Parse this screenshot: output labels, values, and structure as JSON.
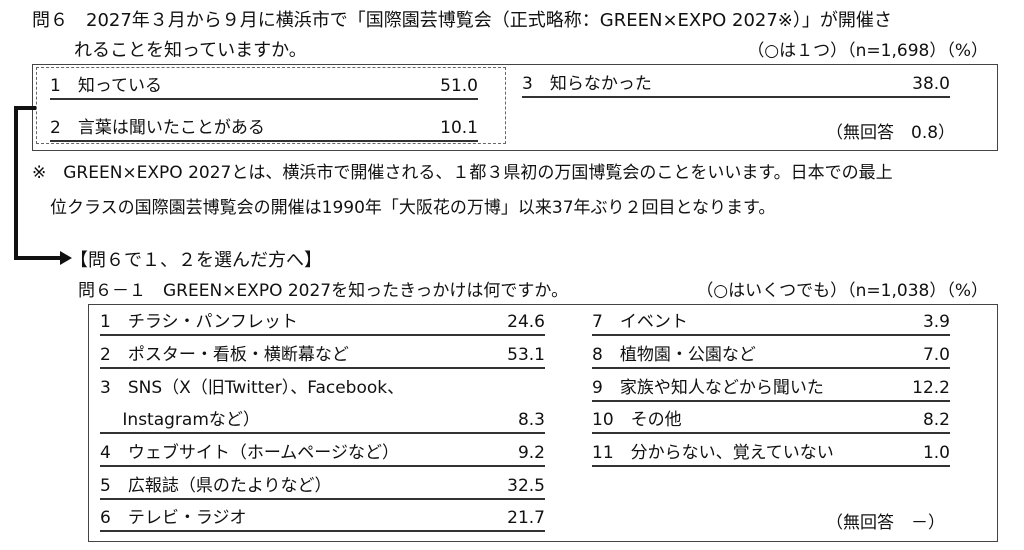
{
  "q6": {
    "line1": "問６　2027年３月から９月に横浜市で「国際園芸博覧会（正式略称：GREEN×EXPO 2027※）」が開催さ",
    "line2": "れることを知っていますか。",
    "meta": "（○は１つ）（n=1,698）（%）",
    "items": [
      {
        "label": "1　知っている",
        "value": "51.0"
      },
      {
        "label": "2　言葉は聞いたことがある",
        "value": "10.1"
      },
      {
        "label": "3　知らなかった",
        "value": "38.0"
      }
    ],
    "no_answer": "（無回答　0.8）"
  },
  "note": {
    "line1": "※　GREEN×EXPO 2027とは、横浜市で開催される、１都３県初の万国博覧会のことをいいます。日本での最上",
    "line2": "位クラスの国際園芸博覧会の開催は1990年「大阪花の万博」以来37年ぶり２回目となります。"
  },
  "q6_1": {
    "branch": "【問６で１、２を選んだ方へ】",
    "question": "問６－１　GREEN×EXPO 2027を知ったきっかけは何ですか。",
    "meta": "（○はいくつでも）（n=1,038）（%）",
    "left": [
      {
        "label": "1　チラシ・パンフレット",
        "value": "24.6"
      },
      {
        "label": "2　ポスター・看板・横断幕など",
        "value": "53.1"
      },
      {
        "label": "3　SNS（X（旧Twitter）、Facebook、",
        "value": ""
      },
      {
        "label": "　 Instagramなど）",
        "value": "8.3"
      },
      {
        "label": "4　ウェブサイト（ホームページなど）",
        "value": "9.2"
      },
      {
        "label": "5　広報誌（県のたよりなど）",
        "value": "32.5"
      },
      {
        "label": "6　テレビ・ラジオ",
        "value": "21.7"
      }
    ],
    "right": [
      {
        "label": "7　イベント",
        "value": "3.9"
      },
      {
        "label": "8　植物園・公園など",
        "value": "7.0"
      },
      {
        "label": "9　家族や知人などから聞いた",
        "value": "12.2"
      },
      {
        "label": "10　その他",
        "value": "8.2"
      },
      {
        "label": "11　分からない、覚えていない",
        "value": "1.0"
      }
    ],
    "no_answer": "（無回答　－）"
  }
}
